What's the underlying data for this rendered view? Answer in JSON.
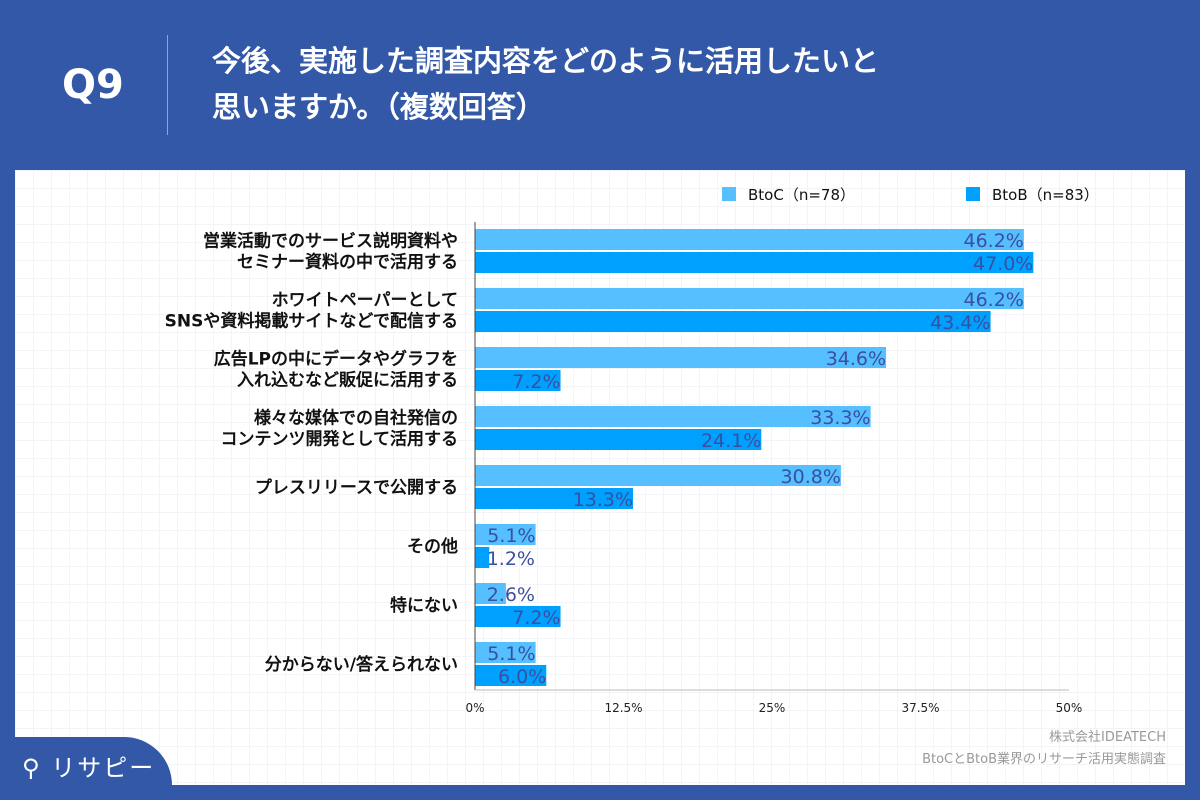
{
  "header": {
    "question_number": "Q9",
    "title_line1": "今後、実施した調査内容をどのように活用したいと",
    "title_line2": "思いますか。（複数回答）"
  },
  "footer": {
    "company": "株式会社IDEATECH",
    "survey": "BtoCとBtoB業界のリサーチ活用実態調査",
    "logo": "リサピー"
  },
  "colors": {
    "header_bg": "#3358a8",
    "btoc": "#55bfff",
    "btob": "#00a0ff",
    "label": "#3a4fa0"
  },
  "chart_data": {
    "type": "bar",
    "orientation": "horizontal",
    "grid": false,
    "legend": "top-right",
    "categories": [
      [
        "営業活動でのサービス説明資料や",
        "セミナー資料の中で活用する"
      ],
      [
        "ホワイトペーパーとして",
        "SNSや資料掲載サイトなどで配信する"
      ],
      [
        "広告LPの中にデータやグラフを",
        "入れ込むなど販促に活用する"
      ],
      [
        "様々な媒体での自社発信の",
        "コンテンツ開発として活用する"
      ],
      [
        "プレスリリースで公開する"
      ],
      [
        "その他"
      ],
      [
        "特にない"
      ],
      [
        "分からない/答えられない"
      ]
    ],
    "series": [
      {
        "name": "BtoC（n=78）",
        "values": [
          46.2,
          46.2,
          34.6,
          33.3,
          30.8,
          5.1,
          2.6,
          5.1
        ]
      },
      {
        "name": "BtoB（n=83）",
        "values": [
          47.0,
          43.4,
          7.2,
          24.1,
          13.3,
          1.2,
          7.2,
          6.0
        ]
      }
    ],
    "xlim": [
      0,
      50
    ],
    "xticks": [
      0,
      12.5,
      25,
      37.5,
      50
    ],
    "xtick_labels": [
      "0%",
      "12.5%",
      "25%",
      "37.5%",
      "50%"
    ],
    "unit": "%"
  }
}
